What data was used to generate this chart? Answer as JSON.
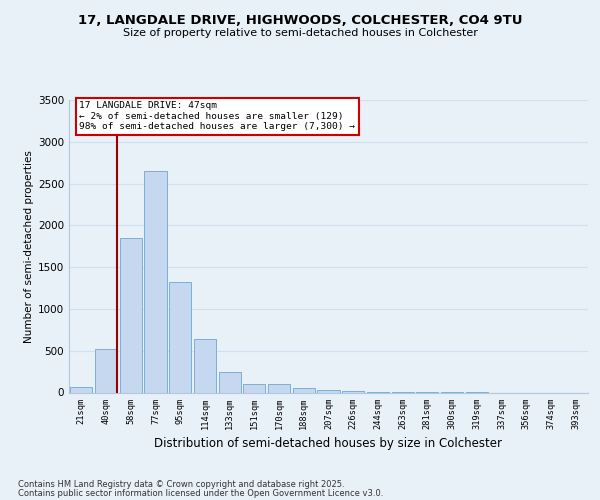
{
  "title1": "17, LANGDALE DRIVE, HIGHWOODS, COLCHESTER, CO4 9TU",
  "title2": "Size of property relative to semi-detached houses in Colchester",
  "xlabel": "Distribution of semi-detached houses by size in Colchester",
  "ylabel": "Number of semi-detached properties",
  "bar_labels": [
    "21sqm",
    "40sqm",
    "58sqm",
    "77sqm",
    "95sqm",
    "114sqm",
    "133sqm",
    "151sqm",
    "170sqm",
    "188sqm",
    "207sqm",
    "226sqm",
    "244sqm",
    "263sqm",
    "281sqm",
    "300sqm",
    "319sqm",
    "337sqm",
    "356sqm",
    "374sqm",
    "393sqm"
  ],
  "bar_values": [
    60,
    520,
    1850,
    2650,
    1320,
    640,
    240,
    100,
    100,
    50,
    30,
    20,
    10,
    5,
    3,
    2,
    1,
    0,
    0,
    0,
    0
  ],
  "bar_color": "#c5d8ef",
  "bar_edge_color": "#7aafd4",
  "grid_color": "#d0e0ef",
  "background_color": "#e8f0f8",
  "vline_color": "#990000",
  "annotation_title": "17 LANGDALE DRIVE: 47sqm",
  "annotation_line1": "← 2% of semi-detached houses are smaller (129)",
  "annotation_line2": "98% of semi-detached houses are larger (7,300) →",
  "annotation_box_color": "#ffffff",
  "annotation_box_edge": "#cc0000",
  "ylim": [
    0,
    3500
  ],
  "yticks": [
    0,
    500,
    1000,
    1500,
    2000,
    2500,
    3000,
    3500
  ],
  "footnote1": "Contains HM Land Registry data © Crown copyright and database right 2025.",
  "footnote2": "Contains public sector information licensed under the Open Government Licence v3.0."
}
